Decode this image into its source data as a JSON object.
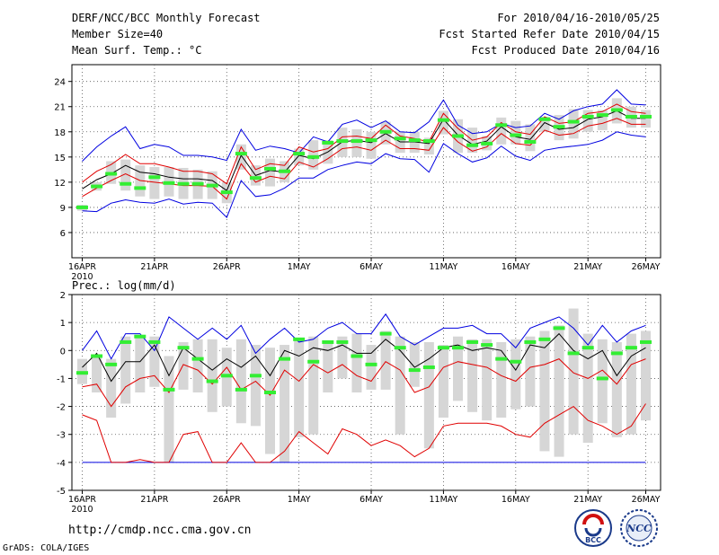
{
  "header": {
    "title": "DERF/NCC/BCC Monthly Forecast",
    "member_size": "Member Size=40",
    "variable": "Mean Surf. Temp.: °C",
    "forecast_period": "For 2010/04/16-2010/05/25",
    "started_refer": "Fcst Started Refer Date 2010/04/15",
    "produced": "Fcst Produced Date 2010/04/16"
  },
  "footer": {
    "url": "http://cmdp.ncc.cma.gov.cn",
    "credit": "GrADS: COLA/IGES"
  },
  "logos": {
    "bcc": "BCC",
    "ncc": "NCC"
  },
  "colors": {
    "ensemble_mean": "#000000",
    "sd_band": "#e00000",
    "extremes": "#0000e0",
    "boxes": "#d6d6d6",
    "observed": "#33ee33",
    "grid": "#555555"
  },
  "chart_data": [
    {
      "type": "line",
      "title": "Mean Surf. Temp.: °C",
      "ylabel": "°C",
      "ylim": [
        3,
        26
      ],
      "yticks": [
        6,
        9,
        12,
        15,
        18,
        21,
        24
      ],
      "xlim": [
        0,
        39
      ],
      "xticks": [
        {
          "day": 0,
          "label": "16APR",
          "sub": "2010"
        },
        {
          "day": 5,
          "label": "21APR"
        },
        {
          "day": 10,
          "label": "26APR"
        },
        {
          "day": 15,
          "label": "1MAY"
        },
        {
          "day": 20,
          "label": "6MAY"
        },
        {
          "day": 25,
          "label": "11MAY"
        },
        {
          "day": 30,
          "label": "16MAY"
        },
        {
          "day": 35,
          "label": "21MAY"
        },
        {
          "day": 39,
          "label": "26MAY"
        }
      ],
      "series": [
        {
          "name": "max",
          "values": [
            14.5,
            16.2,
            17.5,
            18.6,
            16.0,
            16.5,
            16.2,
            15.2,
            15.2,
            15.0,
            14.6,
            18.3,
            15.8,
            16.3,
            16.0,
            15.5,
            17.4,
            16.8,
            18.9,
            19.4,
            18.5,
            19.3,
            18.0,
            17.9,
            19.2,
            21.8,
            18.8,
            17.8,
            18.0,
            19.0,
            18.5,
            18.7,
            20.2,
            19.5,
            20.5,
            21.0,
            21.3,
            23.0,
            21.3,
            21.2
          ]
        },
        {
          "name": "mean_plus_sd",
          "values": [
            12.0,
            13.3,
            14.1,
            15.3,
            14.2,
            14.2,
            13.8,
            13.3,
            13.3,
            13.0,
            11.8,
            16.2,
            13.5,
            14.2,
            14.0,
            16.2,
            15.6,
            16.0,
            17.4,
            17.5,
            17.2,
            18.8,
            17.5,
            17.2,
            16.8,
            20.2,
            18.4,
            17.0,
            17.4,
            19.1,
            18.0,
            17.7,
            19.8,
            19.0,
            19.2,
            20.2,
            20.4,
            21.3,
            20.4,
            20.2
          ]
        },
        {
          "name": "mean",
          "values": [
            11.2,
            12.3,
            13.0,
            14.0,
            13.2,
            13.0,
            12.6,
            12.4,
            12.4,
            12.2,
            11.0,
            15.2,
            12.8,
            13.4,
            13.2,
            15.2,
            14.8,
            15.6,
            16.8,
            17.0,
            16.7,
            17.8,
            16.8,
            16.8,
            16.6,
            19.5,
            17.6,
            16.5,
            16.9,
            18.6,
            17.4,
            17.1,
            19.1,
            18.3,
            18.5,
            19.5,
            19.8,
            20.5,
            19.6,
            19.6
          ]
        },
        {
          "name": "mean_minus_sd",
          "values": [
            10.3,
            11.3,
            12.2,
            13.0,
            12.2,
            12.0,
            11.8,
            11.6,
            11.6,
            11.5,
            10.0,
            14.2,
            12.0,
            12.7,
            12.4,
            14.4,
            13.8,
            14.8,
            16.0,
            16.2,
            15.8,
            17.0,
            16.0,
            16.0,
            15.8,
            18.5,
            16.8,
            15.7,
            16.2,
            17.8,
            16.6,
            16.4,
            18.2,
            17.6,
            17.8,
            18.7,
            19.0,
            19.6,
            18.9,
            18.9
          ]
        },
        {
          "name": "min",
          "values": [
            8.6,
            8.5,
            9.5,
            9.9,
            9.6,
            9.5,
            10.0,
            9.4,
            9.6,
            9.5,
            7.8,
            12.2,
            10.3,
            10.5,
            11.3,
            12.5,
            12.5,
            13.5,
            14.0,
            14.4,
            14.2,
            15.4,
            14.8,
            14.7,
            13.2,
            16.6,
            15.4,
            14.4,
            14.9,
            16.3,
            15.1,
            14.6,
            15.8,
            16.1,
            16.3,
            16.5,
            17.0,
            18.0,
            17.6,
            17.4
          ]
        },
        {
          "name": "box_top",
          "values": [
            9.3,
            12.0,
            14.5,
            14.7,
            14.0,
            13.8,
            13.8,
            13.7,
            13.5,
            13.3,
            12.0,
            16.5,
            14.0,
            14.8,
            14.5,
            16.0,
            17.0,
            17.0,
            18.5,
            18.3,
            18.0,
            19.2,
            18.0,
            18.0,
            17.3,
            20.5,
            19.5,
            18.5,
            17.5,
            19.7,
            19.3,
            18.9,
            19.8,
            20.0,
            20.7,
            20.6,
            20.6,
            22.0,
            21.0,
            20.6
          ]
        },
        {
          "name": "box_bottom",
          "values": [
            8.6,
            11.0,
            11.8,
            11.0,
            10.3,
            10.0,
            10.3,
            10.0,
            10.0,
            10.0,
            9.5,
            13.5,
            11.6,
            11.5,
            12.0,
            14.0,
            13.5,
            14.2,
            15.0,
            15.0,
            14.8,
            16.5,
            15.5,
            15.5,
            15.3,
            17.7,
            15.5,
            15.5,
            15.8,
            16.5,
            16.5,
            15.7,
            18.0,
            17.0,
            17.2,
            18.0,
            18.2,
            19.0,
            18.5,
            18.5
          ]
        },
        {
          "name": "observed",
          "values": [
            9.0,
            11.5,
            13.0,
            11.8,
            11.3,
            12.6,
            11.9,
            11.8,
            11.8,
            11.6,
            10.8,
            15.4,
            12.5,
            13.6,
            13.3,
            15.4,
            15.0,
            16.7,
            16.9,
            16.9,
            17.0,
            18.0,
            17.2,
            17.0,
            16.9,
            19.4,
            17.5,
            16.4,
            16.6,
            18.8,
            17.6,
            16.8,
            19.5,
            18.6,
            19.2,
            19.8,
            20.0,
            20.6,
            19.8,
            19.8
          ]
        }
      ]
    },
    {
      "type": "line",
      "title": "Prec.: log(mm/d)",
      "ylabel": "log(mm/d)",
      "ylim": [
        -5,
        2
      ],
      "yticks": [
        -5,
        -4,
        -3,
        -2,
        -1,
        0,
        1,
        2
      ],
      "xlim": [
        0,
        39
      ],
      "xticks": [
        {
          "day": 0,
          "label": "16APR",
          "sub": "2010"
        },
        {
          "day": 5,
          "label": "21APR"
        },
        {
          "day": 10,
          "label": "26APR"
        },
        {
          "day": 15,
          "label": "1MAY"
        },
        {
          "day": 20,
          "label": "6MAY"
        },
        {
          "day": 25,
          "label": "11MAY"
        },
        {
          "day": 30,
          "label": "16MAY"
        },
        {
          "day": 35,
          "label": "21MAY"
        },
        {
          "day": 39,
          "label": "26MAY"
        }
      ],
      "series": [
        {
          "name": "max",
          "values": [
            0.0,
            0.7,
            -0.3,
            0.6,
            0.6,
            0.0,
            1.2,
            0.8,
            0.4,
            0.8,
            0.4,
            0.9,
            -0.1,
            0.4,
            0.8,
            0.3,
            0.4,
            0.8,
            1.0,
            0.6,
            0.6,
            1.3,
            0.5,
            0.2,
            0.5,
            0.8,
            0.8,
            0.9,
            0.6,
            0.6,
            0.1,
            0.8,
            1.0,
            1.2,
            0.8,
            0.2,
            0.9,
            0.3,
            0.7,
            0.9
          ]
        },
        {
          "name": "mean",
          "values": [
            -0.6,
            -0.1,
            -1.1,
            -0.4,
            -0.4,
            0.2,
            -0.9,
            0.1,
            -0.3,
            -0.7,
            -0.3,
            -0.6,
            -0.2,
            -0.9,
            0.0,
            -0.2,
            0.1,
            0.0,
            0.2,
            -0.1,
            -0.1,
            0.4,
            0.0,
            -0.6,
            -0.3,
            0.1,
            0.2,
            0.0,
            0.1,
            0.0,
            -0.7,
            0.2,
            0.1,
            0.6,
            0.0,
            -0.3,
            0.0,
            -0.9,
            -0.2,
            0.1
          ]
        },
        {
          "name": "mean_minus_sd",
          "values": [
            -1.3,
            -1.2,
            -2.0,
            -1.3,
            -1.0,
            -0.9,
            -1.5,
            -0.5,
            -0.7,
            -1.2,
            -0.6,
            -1.4,
            -1.1,
            -1.6,
            -0.7,
            -1.1,
            -0.5,
            -0.8,
            -0.5,
            -0.9,
            -1.1,
            -0.4,
            -0.7,
            -1.5,
            -1.3,
            -0.6,
            -0.4,
            -0.5,
            -0.6,
            -0.9,
            -1.1,
            -0.6,
            -0.5,
            -0.3,
            -0.8,
            -1.0,
            -0.7,
            -1.2,
            -0.5,
            -0.3
          ]
        },
        {
          "name": "mean_minus_2sd",
          "values": [
            -2.3,
            -2.5,
            -4.0,
            -4.0,
            -3.9,
            -4.0,
            -4.0,
            -3.0,
            -2.9,
            -4.0,
            -4.0,
            -3.3,
            -4.0,
            -4.0,
            -3.6,
            -2.9,
            -3.3,
            -3.7,
            -2.8,
            -3.0,
            -3.4,
            -3.2,
            -3.4,
            -3.8,
            -3.5,
            -2.7,
            -2.6,
            -2.6,
            -2.6,
            -2.7,
            -3.0,
            -3.1,
            -2.6,
            -2.3,
            -2.0,
            -2.5,
            -2.7,
            -3.0,
            -2.7,
            -1.9
          ]
        },
        {
          "name": "min",
          "values": [
            -4.0,
            -4.0,
            -4.0,
            -4.0,
            -4.0,
            -4.0,
            -4.0,
            -4.0,
            -4.0,
            -4.0,
            -4.0,
            -4.0,
            -4.0,
            -4.0,
            -4.0,
            -4.0,
            -4.0,
            -4.0,
            -4.0,
            -4.0,
            -4.0,
            -4.0,
            -4.0,
            -4.0,
            -4.0,
            -4.0,
            -4.0,
            -4.0,
            -4.0,
            -4.0,
            -4.0,
            -4.0,
            -4.0,
            -4.0,
            -4.0,
            -4.0,
            -4.0,
            -4.0,
            -4.0,
            -4.0
          ]
        },
        {
          "name": "box_top",
          "values": [
            -0.3,
            -0.2,
            -0.3,
            0.5,
            0.5,
            0.5,
            -0.2,
            0.3,
            0.4,
            0.4,
            0.1,
            0.4,
            0.2,
            0.1,
            0.2,
            0.4,
            0.5,
            0.3,
            0.5,
            0.6,
            0.2,
            0.7,
            0.5,
            0.3,
            0.3,
            0.2,
            0.5,
            0.4,
            0.4,
            0.3,
            0.4,
            0.5,
            0.7,
            0.9,
            1.5,
            0.6,
            0.4,
            0.3,
            0.6,
            0.7
          ]
        },
        {
          "name": "box_bottom",
          "values": [
            -1.2,
            -1.5,
            -2.4,
            -1.9,
            -1.5,
            -1.3,
            -4.0,
            -1.4,
            -1.5,
            -2.2,
            -2.0,
            -2.6,
            -2.7,
            -3.7,
            -4.0,
            -3.1,
            -3.0,
            -1.5,
            -1.0,
            -1.5,
            -1.4,
            -1.4,
            -3.0,
            -1.3,
            -3.5,
            -2.4,
            -1.8,
            -2.2,
            -2.5,
            -2.4,
            -2.1,
            -2.0,
            -3.6,
            -3.8,
            -3.0,
            -3.3,
            -2.6,
            -3.1,
            -3.0,
            -2.5
          ]
        },
        {
          "name": "observed",
          "values": [
            -0.8,
            -0.2,
            -0.5,
            0.3,
            0.5,
            0.3,
            -1.4,
            0.1,
            -0.3,
            -1.1,
            -0.9,
            -1.4,
            -0.9,
            -1.5,
            -0.3,
            0.4,
            -0.4,
            0.3,
            0.3,
            -0.2,
            -0.5,
            0.6,
            0.1,
            -0.7,
            -0.6,
            0.1,
            0.1,
            0.3,
            0.2,
            -0.3,
            -0.4,
            0.3,
            0.4,
            0.8,
            -0.1,
            0.1,
            -1.0,
            -0.1,
            0.1,
            0.3
          ]
        }
      ]
    }
  ]
}
